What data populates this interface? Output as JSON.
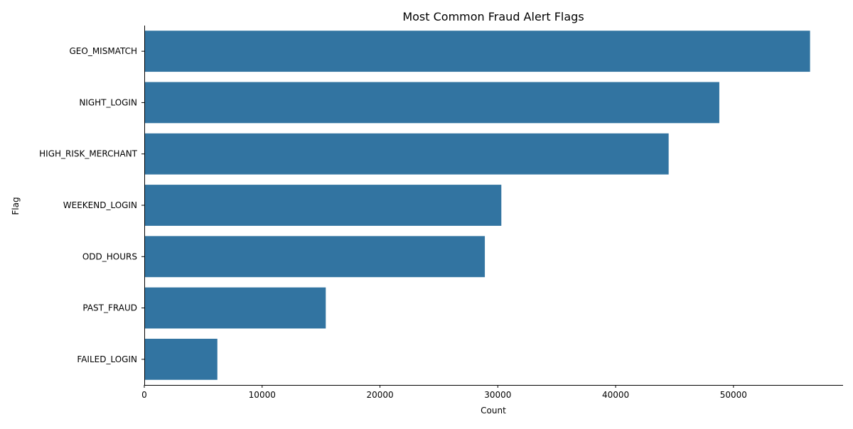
{
  "chart_data": {
    "type": "bar",
    "orientation": "horizontal",
    "title": "Most Common Fraud Alert Flags",
    "xlabel": "Count",
    "ylabel": "Flag",
    "categories": [
      "GEO_MISMATCH",
      "NIGHT_LOGIN",
      "HIGH_RISK_MERCHANT",
      "WEEKEND_LOGIN",
      "ODD_HOURS",
      "PAST_FRAUD",
      "FAILED_LOGIN"
    ],
    "values": [
      56500,
      48800,
      44500,
      30300,
      28900,
      15400,
      6200
    ],
    "xlim": [
      0,
      59300
    ],
    "xticks": [
      0,
      10000,
      20000,
      30000,
      40000,
      50000
    ],
    "grid": false,
    "bar_color": "#3274a1"
  }
}
